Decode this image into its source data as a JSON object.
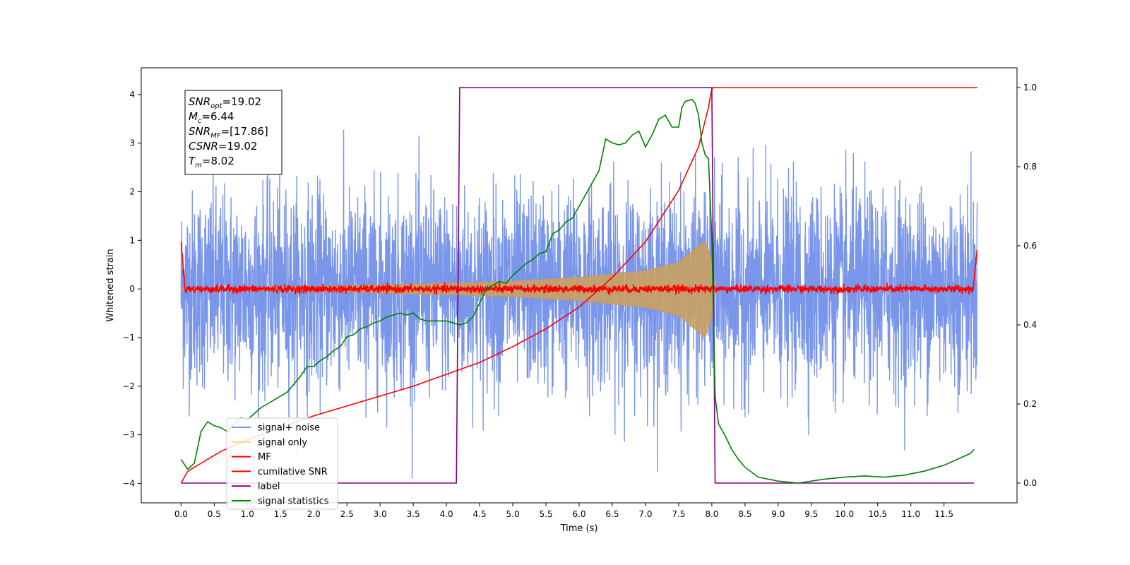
{
  "chart_data": {
    "type": "line",
    "title": "",
    "xlabel": "Time (s)",
    "ylabel": "Whitened strain",
    "xlim": [
      -0.6,
      12.6
    ],
    "ylim_left": [
      -4.4,
      4.55
    ],
    "ylim_right": [
      -0.05,
      1.05
    ],
    "x_ticks": [
      0.0,
      0.5,
      1.0,
      1.5,
      2.0,
      2.5,
      3.0,
      3.5,
      4.0,
      4.5,
      5.0,
      5.5,
      6.0,
      6.5,
      7.0,
      7.5,
      8.0,
      8.5,
      9.0,
      9.5,
      10.0,
      10.5,
      11.0,
      11.5
    ],
    "x_tick_labels": [
      "0.0",
      "0.5",
      "1.0",
      "1.5",
      "2.0",
      "2.5",
      "3.0",
      "3.5",
      "4.0",
      "4.5",
      "5.0",
      "5.5",
      "6.0",
      "6.5",
      "7.0",
      "7.5",
      "8.0",
      "8.5",
      "9.0",
      "9.5",
      "10.0",
      "10.5",
      "11.0",
      "11.5"
    ],
    "y_ticks_left": [
      4,
      3,
      2,
      1,
      0,
      -1,
      -2,
      -3,
      -4
    ],
    "y_tick_labels_left": [
      "4",
      "3",
      "2",
      "1",
      "0",
      "−1",
      "−2",
      "−3",
      "−4"
    ],
    "y_ticks_right": [
      1.0,
      0.8,
      0.6,
      0.4,
      0.2,
      0.0
    ],
    "y_tick_labels_right": [
      "1.0",
      "0.8",
      "0.6",
      "0.4",
      "0.2",
      "0.0"
    ],
    "grid": false,
    "legend_position": "bottom-left",
    "annotation": {
      "lines": [
        {
          "base": "SNR",
          "sub": "opt",
          "value": "=19.02"
        },
        {
          "base": "M",
          "sub": "c",
          "value": "=6.44"
        },
        {
          "base": "SNR",
          "sub": "MF",
          "value": "=[17.86]"
        },
        {
          "base": "CSNR",
          "sub": "",
          "value": "=19.02"
        },
        {
          "base": "T",
          "sub": "m",
          "value": "=8.02"
        }
      ]
    },
    "series": [
      {
        "name": "signal+ noise",
        "color": "#4169e1",
        "axis": "left",
        "kind": "noise",
        "x_range": [
          0.0,
          12.0
        ],
        "amplitude_std": 1.0
      },
      {
        "name": "signal only",
        "color": "#ffa500",
        "axis": "left",
        "kind": "chirp_envelope",
        "x_range": [
          0.0,
          8.0
        ],
        "envelope": [
          [
            0.0,
            0.02
          ],
          [
            2.0,
            0.05
          ],
          [
            4.0,
            0.12
          ],
          [
            5.0,
            0.16
          ],
          [
            6.0,
            0.24
          ],
          [
            7.0,
            0.38
          ],
          [
            7.5,
            0.55
          ],
          [
            7.9,
            1.0
          ],
          [
            8.0,
            0.6
          ],
          [
            8.05,
            0.0
          ]
        ]
      },
      {
        "name": "MF",
        "color": "#ff0000",
        "axis": "left",
        "kind": "mf_noise",
        "x_range": [
          0.0,
          12.0
        ],
        "edge_value": 1.0,
        "amplitude_std": 0.04
      },
      {
        "name": "cumilative SNR",
        "color": "#ff0000",
        "axis": "right",
        "x": [
          0.0,
          0.1,
          0.3,
          0.6,
          1.0,
          1.5,
          2.0,
          2.5,
          3.0,
          3.5,
          4.0,
          4.5,
          5.0,
          5.5,
          6.0,
          6.5,
          7.0,
          7.5,
          7.8,
          7.95,
          8.0,
          8.02,
          12.0
        ],
        "y": [
          0.0,
          0.03,
          0.05,
          0.08,
          0.11,
          0.14,
          0.17,
          0.195,
          0.22,
          0.245,
          0.275,
          0.305,
          0.345,
          0.39,
          0.445,
          0.52,
          0.61,
          0.74,
          0.85,
          0.95,
          1.0,
          1.0,
          1.0
        ]
      },
      {
        "name": "label",
        "color": "#800080",
        "axis": "right",
        "x": [
          0.0,
          4.15,
          4.2,
          8.0,
          8.05,
          11.95
        ],
        "y": [
          0.0,
          0.0,
          1.0,
          1.0,
          0.0,
          0.0
        ]
      },
      {
        "name": "signal statistics",
        "color": "#008000",
        "axis": "right",
        "x": [
          0.0,
          0.1,
          0.2,
          0.3,
          0.4,
          0.5,
          0.6,
          0.7,
          0.8,
          0.9,
          1.0,
          1.1,
          1.2,
          1.3,
          1.4,
          1.5,
          1.6,
          1.7,
          1.8,
          1.9,
          2.0,
          2.1,
          2.2,
          2.3,
          2.4,
          2.5,
          2.6,
          2.7,
          2.8,
          2.9,
          3.0,
          3.1,
          3.2,
          3.3,
          3.4,
          3.5,
          3.6,
          3.7,
          3.8,
          3.9,
          4.0,
          4.1,
          4.2,
          4.3,
          4.4,
          4.5,
          4.6,
          4.7,
          4.8,
          4.9,
          5.0,
          5.1,
          5.2,
          5.3,
          5.4,
          5.5,
          5.6,
          5.7,
          5.8,
          5.9,
          6.0,
          6.1,
          6.2,
          6.3,
          6.4,
          6.5,
          6.6,
          6.7,
          6.8,
          6.9,
          7.0,
          7.1,
          7.2,
          7.3,
          7.4,
          7.5,
          7.55,
          7.6,
          7.7,
          7.75,
          7.8,
          7.85,
          7.9,
          7.95,
          8.0,
          8.05,
          8.1,
          8.2,
          8.3,
          8.4,
          8.5,
          8.7,
          9.0,
          9.3,
          9.5,
          9.7,
          10.0,
          10.3,
          10.6,
          10.9,
          11.2,
          11.5,
          11.7,
          11.9,
          11.95
        ],
        "y": [
          0.06,
          0.035,
          0.05,
          0.13,
          0.155,
          0.145,
          0.14,
          0.13,
          0.15,
          0.165,
          0.16,
          0.175,
          0.19,
          0.2,
          0.21,
          0.22,
          0.23,
          0.25,
          0.27,
          0.295,
          0.295,
          0.31,
          0.32,
          0.335,
          0.345,
          0.37,
          0.375,
          0.39,
          0.395,
          0.405,
          0.41,
          0.42,
          0.425,
          0.43,
          0.425,
          0.43,
          0.415,
          0.41,
          0.41,
          0.41,
          0.41,
          0.405,
          0.4,
          0.405,
          0.42,
          0.455,
          0.49,
          0.5,
          0.51,
          0.505,
          0.525,
          0.54,
          0.555,
          0.565,
          0.58,
          0.585,
          0.63,
          0.64,
          0.66,
          0.67,
          0.7,
          0.73,
          0.76,
          0.79,
          0.87,
          0.86,
          0.855,
          0.86,
          0.88,
          0.89,
          0.85,
          0.88,
          0.92,
          0.93,
          0.9,
          0.9,
          0.95,
          0.965,
          0.97,
          0.96,
          0.93,
          0.86,
          0.83,
          0.82,
          0.62,
          0.22,
          0.15,
          0.12,
          0.085,
          0.06,
          0.04,
          0.015,
          0.005,
          0.0,
          0.005,
          0.01,
          0.015,
          0.018,
          0.015,
          0.02,
          0.03,
          0.045,
          0.06,
          0.075,
          0.085
        ]
      }
    ]
  }
}
